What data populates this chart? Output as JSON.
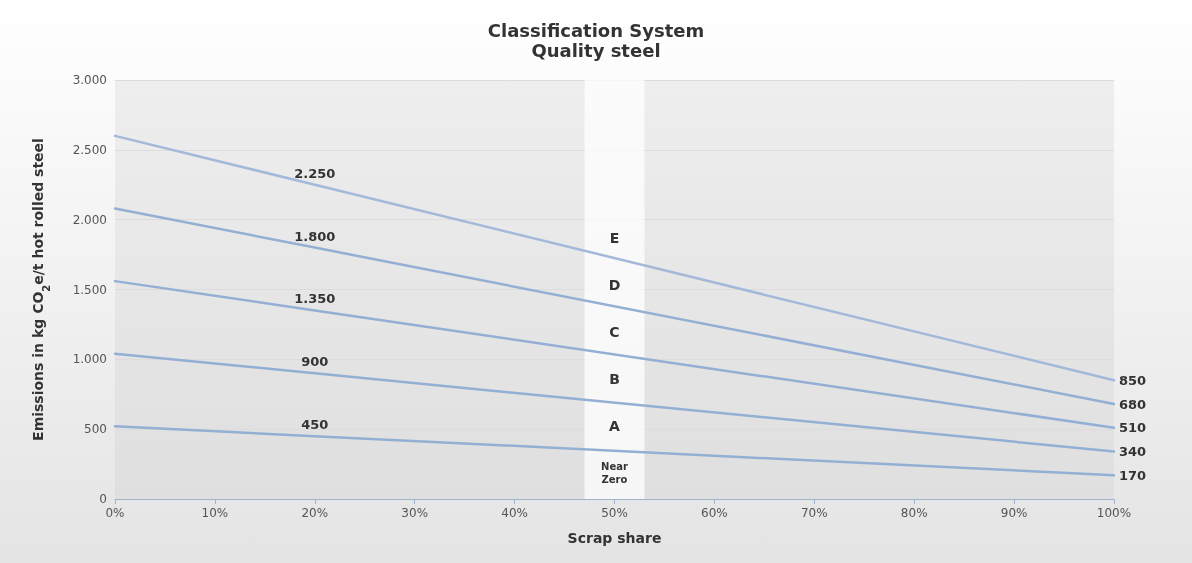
{
  "chart_data": {
    "type": "line",
    "title": "Classification System",
    "subtitle": "Quality steel",
    "xlabel": "Scrap share",
    "ylabel": "Emissions in kg CO$_{2}$e/t hot rolled steel",
    "x": [
      0,
      20,
      100
    ],
    "series": [
      {
        "color": "#a3b9d9",
        "values": [
          2600,
          2250,
          850
        ],
        "value_labels": [
          null,
          "2.250",
          "850"
        ]
      },
      {
        "color": "#94afd4",
        "values": [
          2080,
          1800,
          680
        ],
        "value_labels": [
          null,
          "1.800",
          "680"
        ]
      },
      {
        "color": "#94afd4",
        "values": [
          1560,
          1350,
          510
        ],
        "value_labels": [
          null,
          "1.350",
          "510"
        ]
      },
      {
        "color": "#94afd4",
        "values": [
          1040,
          900,
          340
        ],
        "value_labels": [
          null,
          "900",
          "340"
        ]
      },
      {
        "color": "#94afd4",
        "values": [
          520,
          450,
          170
        ],
        "value_labels": [
          null,
          "450",
          "170"
        ]
      }
    ],
    "xlim": [
      0,
      100
    ],
    "xticks": [
      {
        "value": 0,
        "label": "0%"
      },
      {
        "value": 10,
        "label": "10%"
      },
      {
        "value": 20,
        "label": "20%"
      },
      {
        "value": 30,
        "label": "30%"
      },
      {
        "value": 40,
        "label": "40%"
      },
      {
        "value": 50,
        "label": "50%"
      },
      {
        "value": 60,
        "label": "60%"
      },
      {
        "value": 70,
        "label": "70%"
      },
      {
        "value": 80,
        "label": "80%"
      },
      {
        "value": 90,
        "label": "90%"
      },
      {
        "value": 100,
        "label": "100%"
      }
    ],
    "ylim": [
      0,
      3000
    ],
    "yticks": [
      0,
      500,
      {
        "value": 1000,
        "label": "1.000"
      },
      {
        "value": 1500,
        "label": "1.500"
      },
      {
        "value": 2000,
        "label": "2.000"
      },
      {
        "value": 2500,
        "label": "2.500"
      },
      {
        "value": 3000,
        "label": "3.000"
      }
    ],
    "bands": [
      {
        "axis": "x",
        "from": 47,
        "to": 53,
        "color": "#ffffff"
      }
    ],
    "annotations": [
      "E",
      "D",
      "C",
      "B",
      "A",
      "Near Zero"
    ],
    "grid": "y",
    "marker": "none",
    "line_style": "solid"
  }
}
